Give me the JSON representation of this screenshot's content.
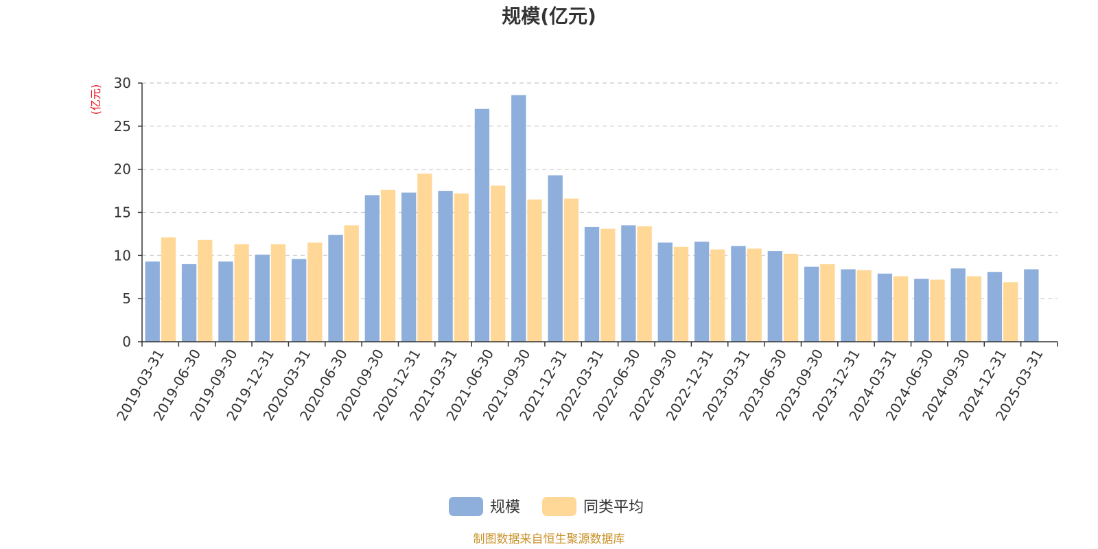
{
  "chart_data": {
    "type": "bar",
    "title": "规模(亿元)",
    "ylabel": "(亿元)",
    "ylim": [
      0,
      30
    ],
    "yticks": [
      0,
      5,
      10,
      15,
      20,
      25,
      30
    ],
    "grid": "horizontal dashed",
    "legend_position": "bottom-center",
    "categories": [
      "2019-03-31",
      "2019-06-30",
      "2019-09-30",
      "2019-12-31",
      "2020-03-31",
      "2020-06-30",
      "2020-09-30",
      "2020-12-31",
      "2021-03-31",
      "2021-06-30",
      "2021-09-30",
      "2021-12-31",
      "2022-03-31",
      "2022-06-30",
      "2022-09-30",
      "2022-12-31",
      "2023-03-31",
      "2023-06-30",
      "2023-09-30",
      "2023-12-31",
      "2024-03-31",
      "2024-06-30",
      "2024-09-30",
      "2024-12-31",
      "2025-03-31"
    ],
    "series": [
      {
        "name": "规模",
        "color": "#8eaedb",
        "values": [
          9.3,
          9.0,
          9.3,
          10.1,
          9.6,
          12.4,
          17.0,
          17.3,
          17.5,
          27.0,
          28.6,
          19.3,
          13.3,
          13.5,
          11.5,
          11.6,
          11.1,
          10.5,
          8.7,
          8.4,
          7.9,
          7.3,
          8.5,
          8.1,
          8.4
        ]
      },
      {
        "name": "同类平均",
        "color": "#ffd898",
        "values": [
          12.1,
          11.8,
          11.3,
          11.3,
          11.5,
          13.5,
          17.6,
          19.5,
          17.2,
          18.1,
          16.5,
          16.6,
          13.1,
          13.4,
          11.0,
          10.7,
          10.8,
          10.2,
          9.0,
          8.3,
          7.6,
          7.2,
          7.6,
          6.9,
          null
        ]
      }
    ]
  },
  "footer": {
    "source": "制图数据来自恒生聚源数据库"
  }
}
